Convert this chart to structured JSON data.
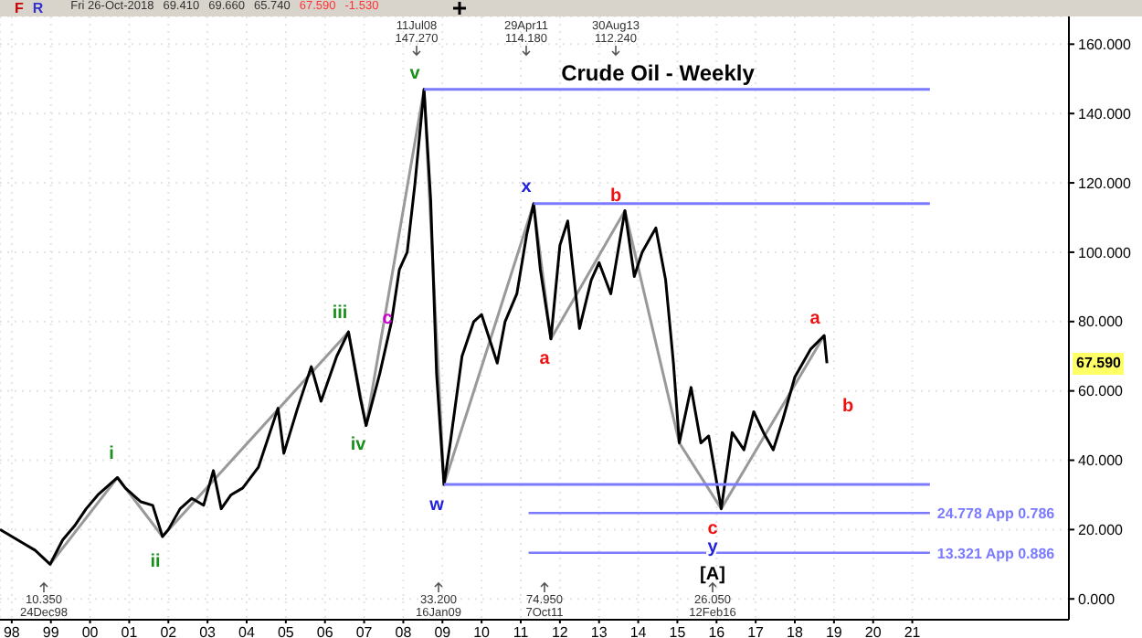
{
  "chart_data": {
    "type": "line",
    "title": "Crude Oil - Weekly",
    "xlim": [
      1997.7,
      2025.0
    ],
    "ylim": [
      -6,
      168
    ],
    "xticks": [
      {
        "value": 1998,
        "label": "98"
      },
      {
        "value": 1999,
        "label": "99"
      },
      {
        "value": 2000,
        "label": "00"
      },
      {
        "value": 2001,
        "label": "01"
      },
      {
        "value": 2002,
        "label": "02"
      },
      {
        "value": 2003,
        "label": "03"
      },
      {
        "value": 2004,
        "label": "04"
      },
      {
        "value": 2005,
        "label": "05"
      },
      {
        "value": 2006,
        "label": "06"
      },
      {
        "value": 2007,
        "label": "07"
      },
      {
        "value": 2008,
        "label": "08"
      },
      {
        "value": 2009,
        "label": "09"
      },
      {
        "value": 2010,
        "label": "10"
      },
      {
        "value": 2011,
        "label": "11"
      },
      {
        "value": 2012,
        "label": "12"
      },
      {
        "value": 2013,
        "label": "13"
      },
      {
        "value": 2014,
        "label": "14"
      },
      {
        "value": 2015,
        "label": "15"
      },
      {
        "value": 2016,
        "label": "16"
      },
      {
        "value": 2017,
        "label": "17"
      },
      {
        "value": 2018,
        "label": "18"
      },
      {
        "value": 2019,
        "label": "19"
      },
      {
        "value": 2020,
        "label": "20"
      },
      {
        "value": 2021,
        "label": "21"
      }
    ],
    "yticks": [
      {
        "value": 0,
        "label": "0.000"
      },
      {
        "value": 20,
        "label": "20.000"
      },
      {
        "value": 40,
        "label": "40.000"
      },
      {
        "value": 60,
        "label": "60.000"
      },
      {
        "value": 80,
        "label": "80.000"
      },
      {
        "value": 100,
        "label": "100.000"
      },
      {
        "value": 120,
        "label": "120.000"
      },
      {
        "value": 140,
        "label": "140.000"
      },
      {
        "value": 160,
        "label": "160.000"
      }
    ],
    "grid": true,
    "series": [
      {
        "color": "#999999",
        "x": [
          1998.98,
          2000.7,
          2001.85,
          2006.6,
          2007.05,
          2008.53,
          2009.04,
          2011.33,
          2011.77,
          2013.66,
          2015.05,
          2016.12,
          2018.75
        ],
        "values": [
          10,
          35,
          18,
          77,
          50,
          147,
          33,
          114,
          75,
          112,
          45,
          26,
          76
        ]
      },
      {
        "color": "#000000",
        "x": [
          1997.7,
          1998.3,
          1998.6,
          1998.98,
          1999.3,
          1999.6,
          1999.9,
          2000.2,
          2000.7,
          2000.9,
          2001.3,
          2001.6,
          2001.85,
          2002.0,
          2002.3,
          2002.6,
          2002.9,
          2003.15,
          2003.35,
          2003.6,
          2003.9,
          2004.3,
          2004.8,
          2004.95,
          2005.3,
          2005.65,
          2005.9,
          2006.3,
          2006.6,
          2006.9,
          2007.05,
          2007.4,
          2007.7,
          2007.9,
          2008.1,
          2008.3,
          2008.53,
          2008.7,
          2008.85,
          2009.04,
          2009.2,
          2009.5,
          2009.8,
          2010.0,
          2010.4,
          2010.6,
          2010.9,
          2011.15,
          2011.33,
          2011.5,
          2011.77,
          2012.0,
          2012.2,
          2012.5,
          2012.8,
          2013.0,
          2013.3,
          2013.66,
          2013.9,
          2014.1,
          2014.45,
          2014.7,
          2014.9,
          2015.05,
          2015.35,
          2015.6,
          2015.8,
          2016.12,
          2016.4,
          2016.7,
          2016.95,
          2017.2,
          2017.45,
          2017.7,
          2018.0,
          2018.4,
          2018.75,
          2018.82
        ],
        "values": [
          20,
          16,
          14,
          10,
          17,
          21,
          26,
          30,
          35,
          32,
          28,
          27,
          18,
          20,
          26,
          29,
          27,
          37,
          26,
          30,
          32,
          38,
          55,
          42,
          55,
          67,
          57,
          70,
          77,
          58,
          50,
          65,
          80,
          95,
          100,
          120,
          147,
          115,
          65,
          33,
          45,
          70,
          80,
          82,
          68,
          80,
          88,
          105,
          114,
          95,
          75,
          102,
          109,
          78,
          92,
          97,
          88,
          112,
          93,
          100,
          107,
          92,
          68,
          45,
          61,
          45,
          47,
          26,
          48,
          43,
          54,
          48,
          43,
          52,
          64,
          72,
          76,
          68
        ]
      },
      {
        "color": "#7b7bff",
        "x": [
          2008.53,
          2021.45
        ],
        "values": [
          147,
          147
        ]
      },
      {
        "color": "#7b7bff",
        "x": [
          2011.33,
          2021.45
        ],
        "values": [
          114,
          114
        ]
      },
      {
        "color": "#7b7bff",
        "x": [
          2009.04,
          2021.45
        ],
        "values": [
          33,
          33
        ]
      },
      {
        "name": "24.778 App 0.786",
        "color": "#7b7bff",
        "x": [
          2011.2,
          2021.45
        ],
        "values": [
          24.778,
          24.778
        ]
      },
      {
        "name": "13.321 App 0.886",
        "color": "#7b7bff",
        "x": [
          2011.2,
          2021.45
        ],
        "values": [
          13.321,
          13.321
        ]
      }
    ],
    "annotations": [
      "F",
      "R",
      "Fri 26-Oct-2018",
      "69.410",
      "69.660",
      "65.740",
      "67.590",
      "-1.530",
      "67.590",
      "11Jul08\n147.270",
      "29Apr11\n114.180",
      "30Aug13\n112.240",
      "10.350\n24Dec98",
      "33.200\n16Jan09",
      "74.950\n7Oct11",
      "26.050\n12Feb16",
      "i",
      "ii",
      "iii",
      "iv",
      "c",
      "v",
      "w",
      "x",
      "a",
      "b",
      "c",
      "y",
      "[A]",
      "a",
      "b"
    ]
  }
}
